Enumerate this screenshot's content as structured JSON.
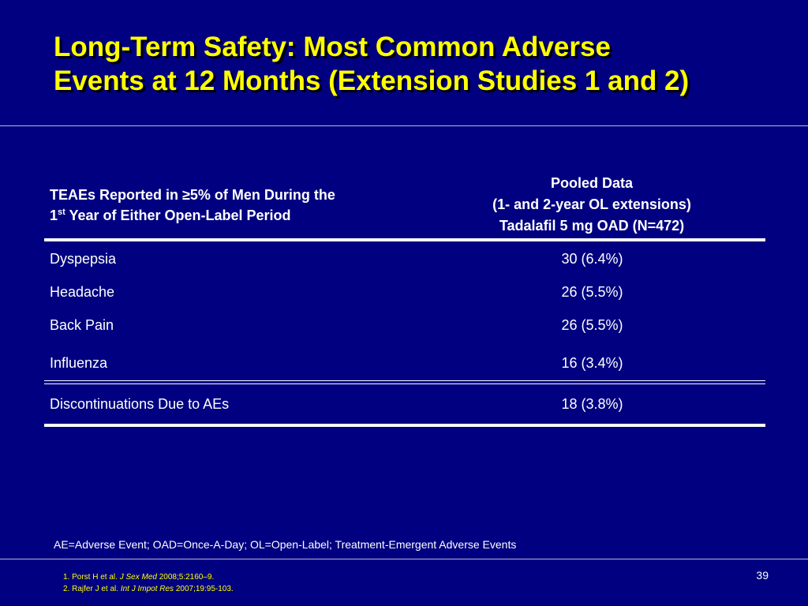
{
  "slide": {
    "title_line1": "Long-Term Safety: Most Common Adverse",
    "title_line2": "Events at 12 Months (Extension Studies 1 and 2)",
    "colors": {
      "background": "#000080",
      "title": "#ffff00",
      "text": "#ffffff",
      "references": "#ffff00"
    }
  },
  "table": {
    "header_left_line1": "TEAEs Reported in ≥5% of Men During the",
    "header_left_line2_num": "1",
    "header_left_line2_sup": "st",
    "header_left_line2_rest": " Year of Either Open-Label Period",
    "header_right_line1": "Pooled Data",
    "header_right_line2": "(1- and 2-year OL extensions)",
    "header_right_line3": "Tadalafil 5 mg OAD (N=472)",
    "rows": [
      {
        "label": "Dyspepsia",
        "value": "30 (6.4%)"
      },
      {
        "label": "Headache",
        "value": "26 (5.5%)"
      },
      {
        "label": "Back Pain",
        "value": "26 (5.5%)"
      },
      {
        "label": "Influenza",
        "value": "16 (3.4%)"
      }
    ],
    "summary_row": {
      "label": "Discontinuations Due to AEs",
      "value": "18 (3.8%)"
    }
  },
  "footnote": "AE=Adverse Event; OAD=Once-A-Day; OL=Open-Label; Treatment-Emergent Adverse Events",
  "references": [
    {
      "prefix": "1. Porst H et al. ",
      "journal": "J Sex Med",
      "suffix": " 2008;5:2160–9."
    },
    {
      "prefix": "2. Rajfer J et al. ",
      "journal": "Int J Impot Res",
      "suffix": " 2007;19:95-103."
    }
  ],
  "page_number": "39"
}
